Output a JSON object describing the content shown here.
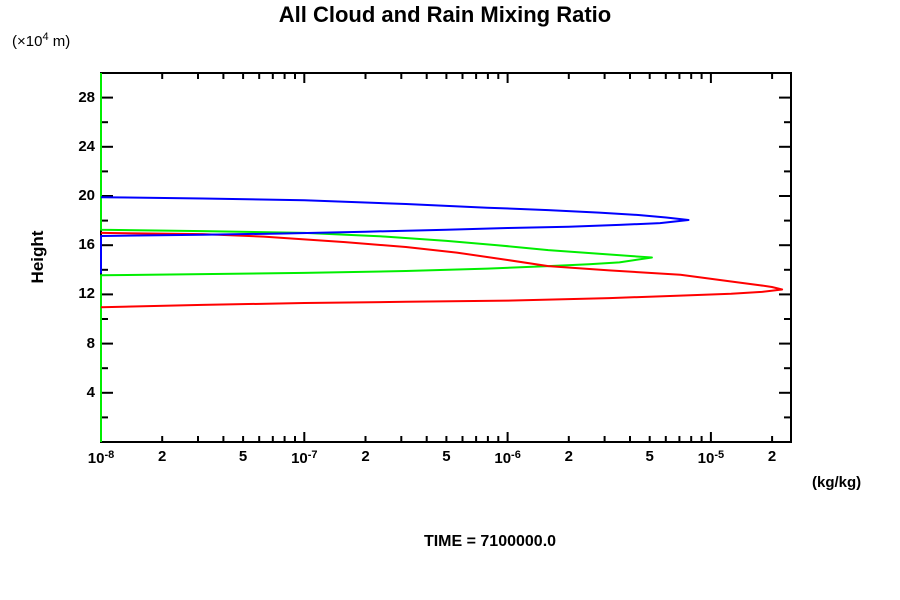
{
  "title": "All Cloud and Rain Mixing Ratio",
  "y_unit_label": {
    "prefix": "(×10",
    "sup": "4",
    "suffix": " m)"
  },
  "y_axis_title": "Height",
  "x_unit_label": "(kg/kg)",
  "time_label": "TIME = 7100000.0",
  "colors": {
    "axis": "#000000",
    "blue": "#0000ff",
    "green": "#00ee00",
    "red": "#ff0000",
    "background": "#ffffff"
  },
  "chart_data": {
    "type": "line",
    "title": "All Cloud and Rain Mixing Ratio",
    "subtitle": "TIME = 7100000.0",
    "xlabel": "(kg/kg)",
    "ylabel": "Height (x10^4 m)",
    "x_scale": "log10",
    "xlim_log10": [
      -8,
      -4.606
    ],
    "ylim": [
      0,
      30
    ],
    "grid": false,
    "legend": "none",
    "x_major_ticks_log10": [
      -8,
      -7,
      -6,
      -5
    ],
    "x_minor_mantissas": [
      2,
      3,
      4,
      5,
      6,
      7,
      8,
      9
    ],
    "x_tick_labels": [
      {
        "text": "10",
        "sup": "-8",
        "log10": -8
      },
      {
        "text": "2",
        "log10": -7.69897
      },
      {
        "text": "5",
        "log10": -7.30103
      },
      {
        "text": "10",
        "sup": "-7",
        "log10": -7
      },
      {
        "text": "2",
        "log10": -6.69897
      },
      {
        "text": "5",
        "log10": -6.30103
      },
      {
        "text": "10",
        "sup": "-6",
        "log10": -6
      },
      {
        "text": "2",
        "log10": -5.69897
      },
      {
        "text": "5",
        "log10": -5.30103
      },
      {
        "text": "10",
        "sup": "-5",
        "log10": -5
      },
      {
        "text": "2",
        "log10": -4.69897
      }
    ],
    "y_major_ticks": [
      4,
      8,
      12,
      16,
      20,
      24,
      28
    ],
    "y_minor_ticks": [
      2,
      6,
      10,
      14,
      18,
      22,
      26
    ],
    "series": [
      {
        "name": "series-green",
        "color": "#00ee00",
        "points_log10x_height": [
          [
            -8,
            30
          ],
          [
            -8,
            17.25
          ],
          [
            -7.5,
            17.15
          ],
          [
            -7,
            17.0
          ],
          [
            -6.6,
            16.7
          ],
          [
            -6.3,
            16.35
          ],
          [
            -6.05,
            16.0
          ],
          [
            -5.8,
            15.6
          ],
          [
            -5.55,
            15.3
          ],
          [
            -5.29,
            15.0
          ],
          [
            -5.45,
            14.6
          ],
          [
            -5.6,
            14.45
          ],
          [
            -5.8,
            14.3
          ],
          [
            -6.1,
            14.1
          ],
          [
            -6.5,
            13.9
          ],
          [
            -7,
            13.75
          ],
          [
            -7.5,
            13.65
          ],
          [
            -8,
            13.55
          ],
          [
            -8,
            0
          ]
        ],
        "peak": {
          "value_kg_per_kg": 5.1e-06,
          "height_1e4m": 15.0
        }
      },
      {
        "name": "series-red",
        "color": "#ff0000",
        "points_log10x_height": [
          [
            -8,
            17.0
          ],
          [
            -7.5,
            16.9
          ],
          [
            -7.2,
            16.7
          ],
          [
            -6.8,
            16.25
          ],
          [
            -6.5,
            15.85
          ],
          [
            -6.25,
            15.4
          ],
          [
            -6.0,
            14.8
          ],
          [
            -5.8,
            14.3
          ],
          [
            -5.5,
            13.95
          ],
          [
            -5.15,
            13.6
          ],
          [
            -4.9,
            13.05
          ],
          [
            -4.76,
            12.75
          ],
          [
            -4.7,
            12.6
          ],
          [
            -4.65,
            12.4
          ],
          [
            -4.75,
            12.2
          ],
          [
            -4.9,
            12.05
          ],
          [
            -5.15,
            11.9
          ],
          [
            -5.5,
            11.7
          ],
          [
            -6.0,
            11.5
          ],
          [
            -6.5,
            11.4
          ],
          [
            -7.0,
            11.3
          ],
          [
            -7.5,
            11.15
          ],
          [
            -8,
            10.95
          ]
        ],
        "peak": {
          "value_kg_per_kg": 2.2e-05,
          "height_1e4m": 12.4
        }
      },
      {
        "name": "series-blue",
        "color": "#0000ff",
        "points_log10x_height": [
          [
            -8,
            19.9
          ],
          [
            -7.5,
            19.8
          ],
          [
            -7,
            19.65
          ],
          [
            -6.5,
            19.35
          ],
          [
            -6.1,
            19.05
          ],
          [
            -5.8,
            18.85
          ],
          [
            -5.55,
            18.65
          ],
          [
            -5.35,
            18.45
          ],
          [
            -5.22,
            18.25
          ],
          [
            -5.11,
            18.05
          ],
          [
            -5.25,
            17.8
          ],
          [
            -5.45,
            17.65
          ],
          [
            -5.7,
            17.5
          ],
          [
            -6.0,
            17.4
          ],
          [
            -6.3,
            17.25
          ],
          [
            -6.7,
            17.1
          ],
          [
            -7.1,
            16.95
          ],
          [
            -7.5,
            16.85
          ],
          [
            -8,
            16.75
          ],
          [
            -8,
            13.7
          ]
        ],
        "peak": {
          "value_kg_per_kg": 7.7e-06,
          "height_1e4m": 18.1
        }
      }
    ]
  }
}
